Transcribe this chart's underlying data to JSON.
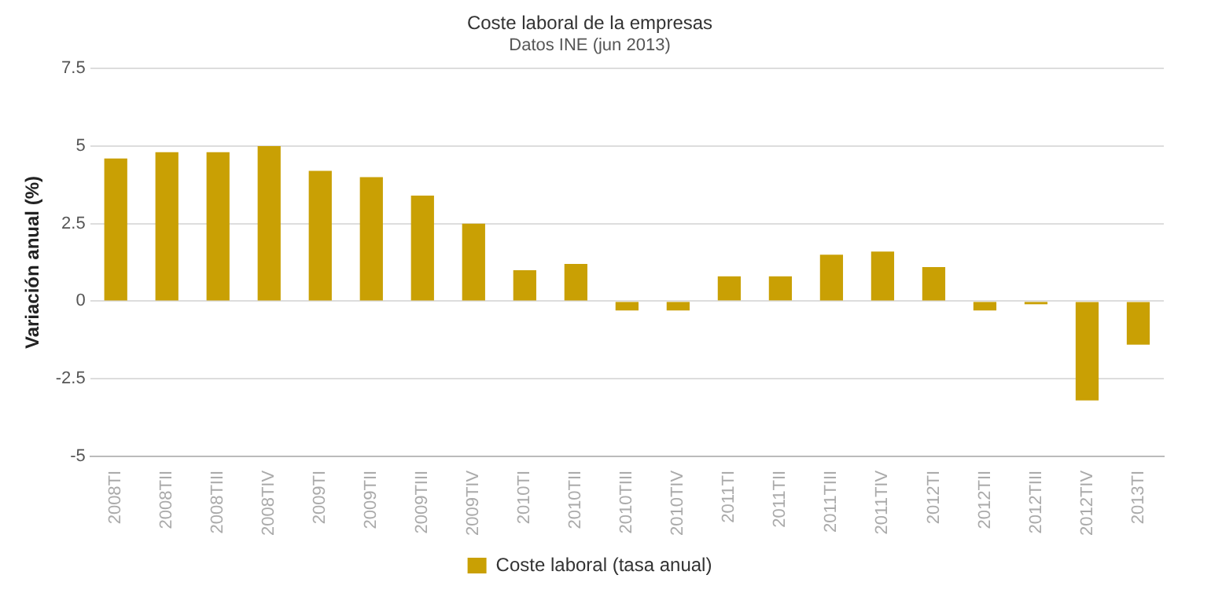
{
  "chart_data": {
    "type": "bar",
    "title": "Coste laboral de la empresas",
    "subtitle": "Datos INE (jun 2013)",
    "ylabel": "Variación anual (%)",
    "categories": [
      "2008TI",
      "2008TII",
      "2008TIII",
      "2008TIV",
      "2009TI",
      "2009TII",
      "2009TIII",
      "2009TIV",
      "2010TI",
      "2010TII",
      "2010TIII",
      "2010TIV",
      "2011TI",
      "2011TII",
      "2011TIII",
      "2011TIV",
      "2012TI",
      "2012TII",
      "2012TIII",
      "2012TIV",
      "2013TI"
    ],
    "series": [
      {
        "name": "Coste laboral (tasa anual)",
        "color": "#c9a004",
        "values": [
          4.6,
          4.8,
          4.8,
          5.0,
          4.2,
          4.0,
          3.4,
          2.5,
          1.0,
          1.2,
          -0.3,
          -0.3,
          0.8,
          0.8,
          1.5,
          1.6,
          1.1,
          -0.3,
          -0.1,
          -3.2,
          -1.4
        ]
      }
    ],
    "ylim": [
      -5,
      7.5
    ],
    "yticks": [
      -5,
      -2.5,
      0,
      2.5,
      5,
      7.5
    ],
    "grid": "y",
    "legend": "bottom"
  }
}
